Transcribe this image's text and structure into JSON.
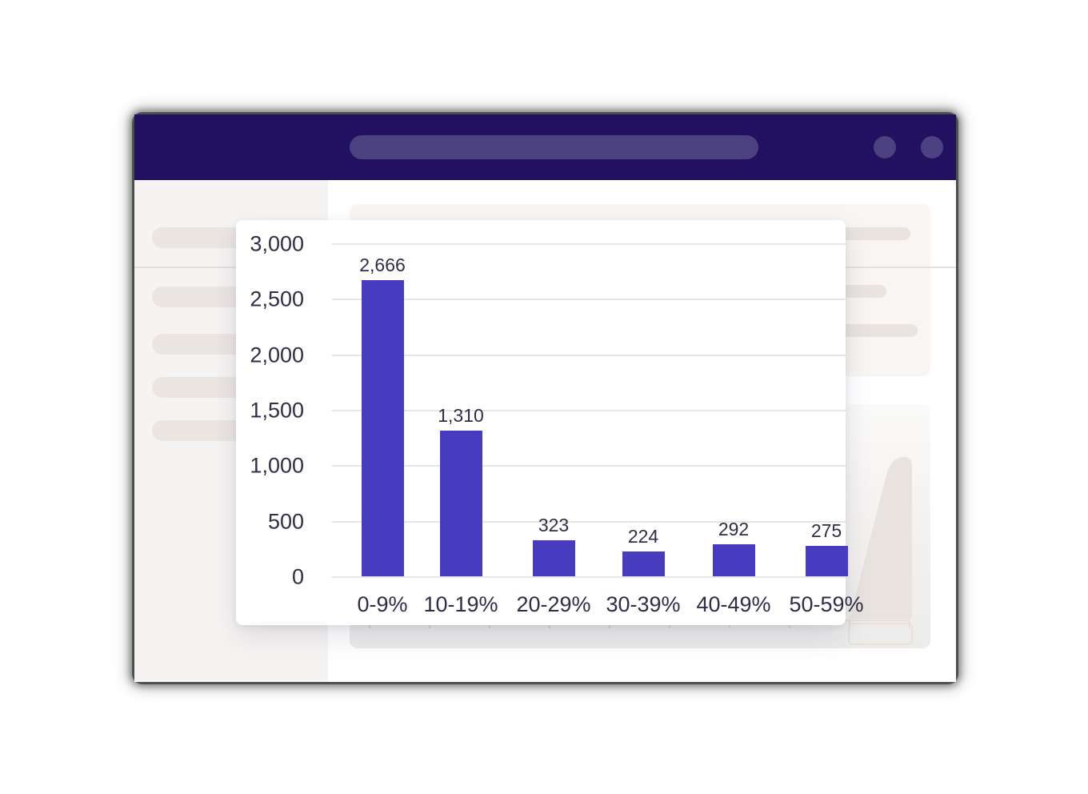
{
  "chart_data": {
    "type": "bar",
    "title": "",
    "categories": [
      "0-9%",
      "10-19%",
      "20-29%",
      "30-39%",
      "40-49%",
      "50-59%"
    ],
    "values": [
      2666,
      1310,
      323,
      224,
      292,
      275
    ],
    "value_labels": [
      "2,666",
      "1,310",
      "323",
      "224",
      "292",
      "275"
    ],
    "y_axis": {
      "min": 0,
      "max": 3000,
      "ticks": [
        {
          "label": "3,000",
          "value": 3000
        },
        {
          "label": "2,500",
          "value": 2500
        },
        {
          "label": "2,000",
          "value": 2000
        },
        {
          "label": "1,500",
          "value": 1500
        },
        {
          "label": "1,000",
          "value": 1000
        },
        {
          "label": "500",
          "value": 500
        },
        {
          "label": "0",
          "value": 0
        }
      ]
    },
    "grid": true,
    "legend_position": "none",
    "bar_color": "#473cc0"
  },
  "colors": {
    "titlebar": "#221061",
    "chrome_pill": "#4c4282",
    "bar": "#473cc0",
    "chart_text": "#2e2e46",
    "gridline": "#eae5e1"
  }
}
